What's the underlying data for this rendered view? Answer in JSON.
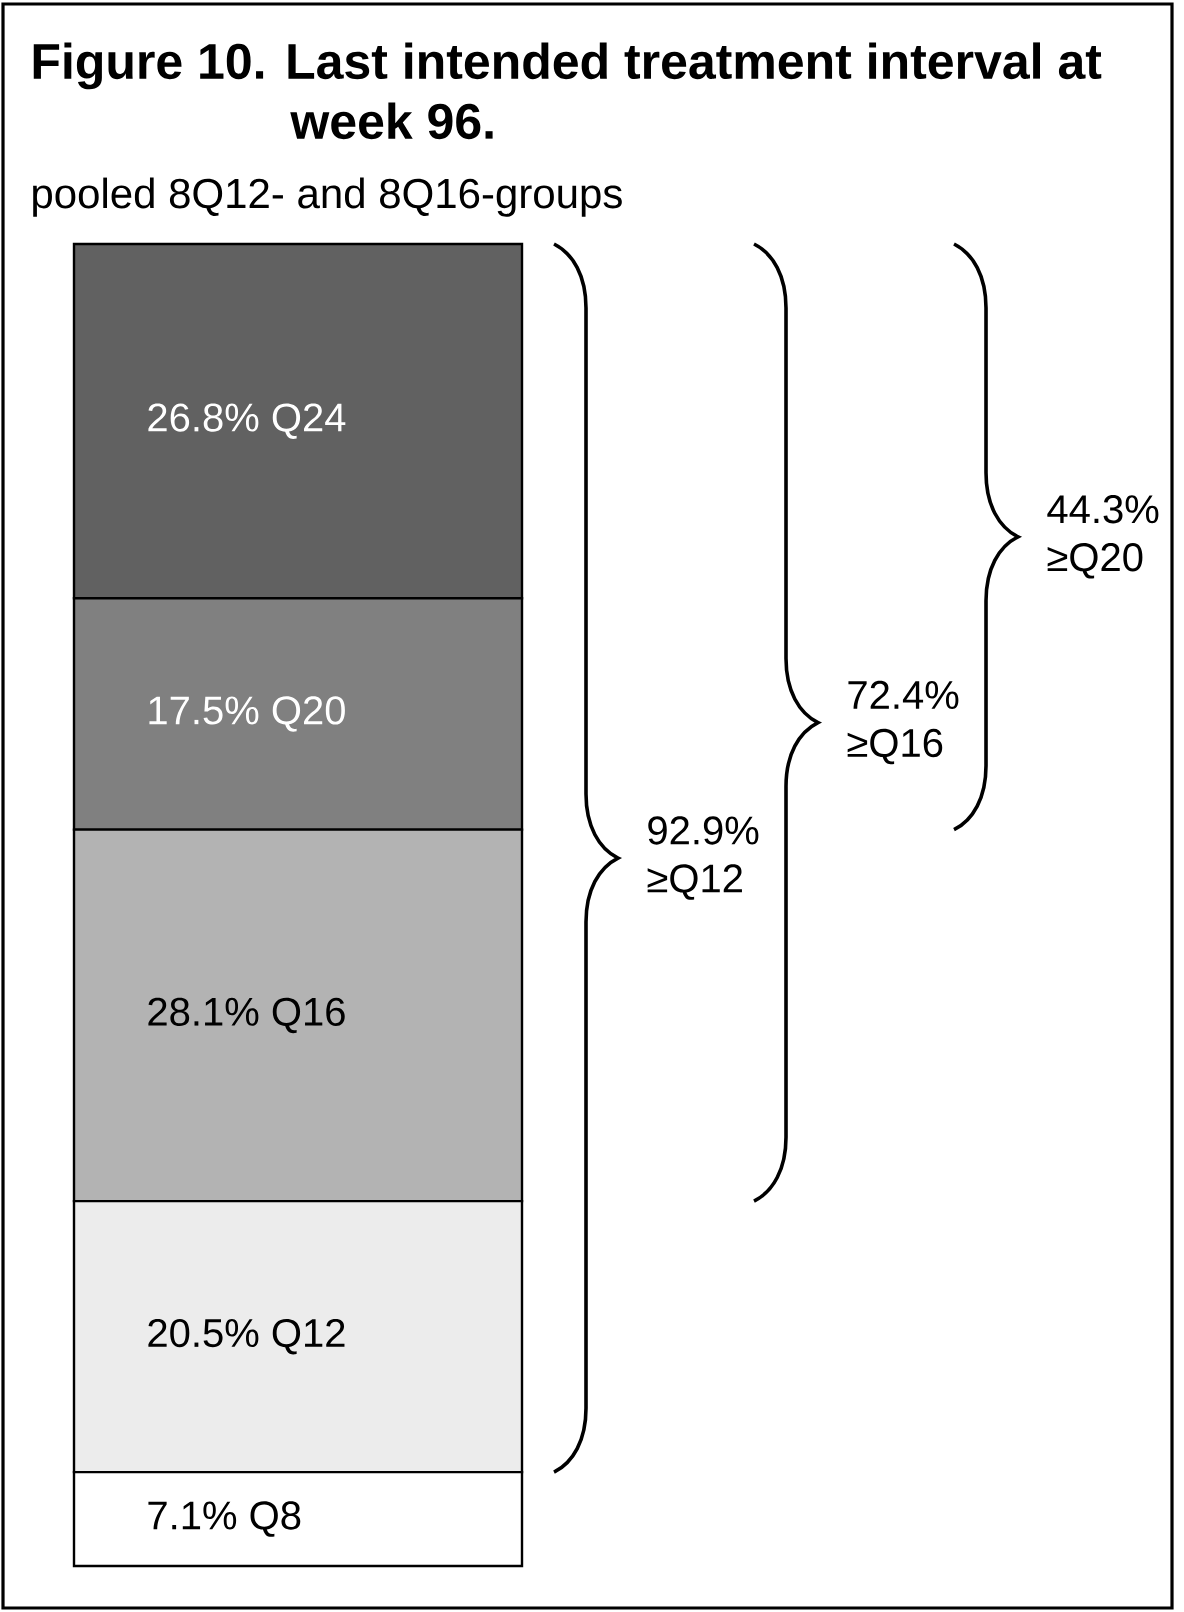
{
  "chart_data": {
    "type": "bar",
    "stacked": true,
    "title": "Figure 10. Last intended treatment interval at week 96.",
    "subtitle": "pooled 8Q12- and 8Q16-groups",
    "categories": [
      null
    ],
    "tick_labels": false,
    "series": [
      {
        "color": "#ffffff",
        "values": [
          7.1
        ],
        "value_labels": [
          "7.1% Q8"
        ]
      },
      {
        "color": "#ececec",
        "values": [
          20.5
        ],
        "value_labels": [
          "20.5% Q12"
        ]
      },
      {
        "color": "#b3b3b3",
        "values": [
          28.1
        ],
        "value_labels": [
          "28.1% Q16"
        ]
      },
      {
        "color": "#808080",
        "values": [
          17.5
        ],
        "value_labels": [
          "17.5% Q20"
        ]
      },
      {
        "color": "#616161",
        "values": [
          26.8
        ],
        "value_labels": [
          "26.8% Q24"
        ]
      }
    ],
    "annotations": [
      "92.9% ≥Q12",
      "72.4% ≥Q16",
      "44.3% ≥Q20"
    ]
  }
}
